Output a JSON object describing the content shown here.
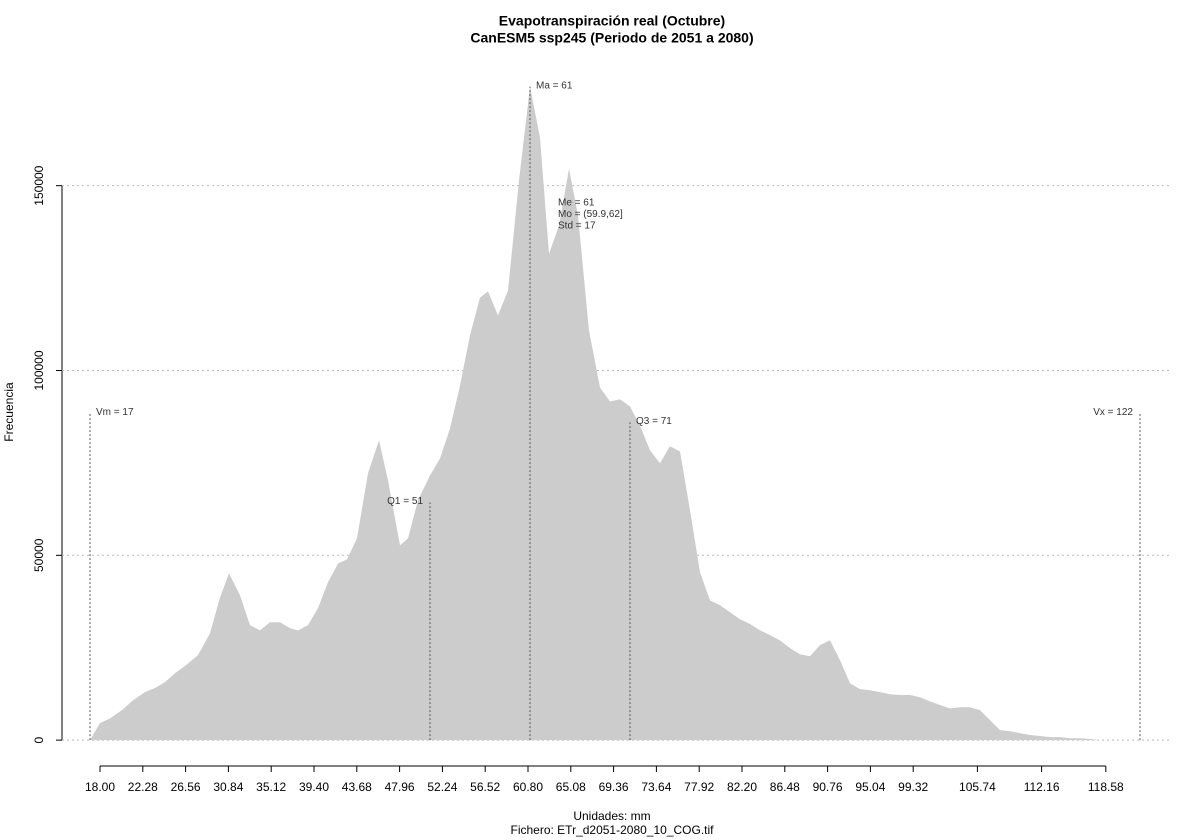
{
  "chart_data": {
    "type": "area",
    "title": "Evapotranspiración real (Octubre)",
    "subtitle": "CanESM5 ssp245 (Periodo de 2051 a 2080)",
    "x_label": "Unidades: mm",
    "caption": "Fichero: ETr_d2051-2080_10_COG.tif",
    "y_label": "Frecuencia",
    "color": "#cccccc",
    "grid": true,
    "x": [
      17,
      18,
      19,
      20.2,
      21.3,
      22.5,
      23.5,
      24.5,
      25.5,
      26.7,
      27.8,
      29,
      30,
      30.9,
      32,
      33,
      34,
      35,
      36,
      37,
      37.8,
      38.8,
      39.8,
      40.8,
      41.8,
      42.7,
      43.7,
      44.8,
      45.9,
      46.8,
      48,
      48.8,
      49.8,
      51,
      52,
      53,
      54,
      55,
      56,
      56.8,
      57.8,
      58.8,
      59.9,
      61,
      62,
      62.9,
      63.9,
      64.9,
      65.8,
      66.9,
      68,
      69,
      70,
      71,
      72,
      73,
      74,
      75,
      76,
      77,
      78,
      79,
      80,
      81,
      82,
      83,
      84,
      85,
      86,
      87,
      88,
      89,
      90,
      91,
      92,
      93,
      94,
      95,
      96,
      97,
      98,
      99,
      100,
      101,
      102,
      103,
      104,
      105,
      106,
      107,
      108,
      109,
      110,
      111,
      112,
      113,
      114,
      115,
      116,
      117,
      118,
      119,
      120.5
    ],
    "values": [
      0,
      4600,
      5900,
      8100,
      10800,
      13000,
      14100,
      15700,
      18100,
      20500,
      23000,
      28900,
      38600,
      45100,
      39200,
      31100,
      29700,
      31900,
      31900,
      30300,
      29700,
      31100,
      35700,
      42700,
      47800,
      48900,
      54600,
      72200,
      81100,
      70300,
      52700,
      54600,
      64900,
      71600,
      76200,
      84300,
      95900,
      109500,
      119700,
      121400,
      114900,
      121600,
      151400,
      176800,
      163000,
      131600,
      139200,
      154600,
      141900,
      110800,
      95400,
      91600,
      92200,
      90300,
      85100,
      78400,
      74900,
      79500,
      78100,
      62200,
      45400,
      37800,
      36500,
      34600,
      32700,
      31400,
      29700,
      28400,
      27000,
      24900,
      23200,
      22700,
      25700,
      27000,
      21600,
      15400,
      13800,
      13500,
      13000,
      12400,
      12200,
      12200,
      11600,
      10500,
      9500,
      8600,
      8900,
      8900,
      8100,
      5400,
      2700,
      2400,
      1900,
      1400,
      1100,
      800,
      800,
      500,
      500,
      300,
      0,
      0,
      0
    ],
    "xlim": [
      14.2,
      125
    ],
    "ylim": [
      -7000,
      184000
    ],
    "xticks": [
      {
        "value": 18,
        "label": "18.00"
      },
      22.28,
      26.56,
      30.84,
      35.12,
      {
        "value": 39.4,
        "label": "39.40"
      },
      43.68,
      47.96,
      52.24,
      56.52,
      {
        "value": 60.8,
        "label": "60.80"
      },
      65.08,
      69.36,
      73.64,
      77.92,
      {
        "value": 82.2,
        "label": "82.20"
      },
      86.48,
      90.76,
      95.04,
      99.32,
      105.74,
      112.16,
      118.58
    ],
    "yticks": [
      0,
      50000,
      100000,
      150000
    ],
    "annotations": [
      {
        "label": "Vm = 17",
        "x": 17,
        "height": 88400
      },
      {
        "label": "Q1 = 51",
        "x": 51,
        "height": 64300
      },
      {
        "label": "Ma = 61",
        "x": 61,
        "height": 176800
      },
      {
        "label": "Q3 = 71",
        "x": 71,
        "height": 86000
      },
      {
        "label": "Vx = 122",
        "x": 122,
        "height": 88400
      }
    ],
    "stats_text": [
      "Me = 61",
      "Mo = (59.9,62]",
      "Std = 17"
    ]
  }
}
